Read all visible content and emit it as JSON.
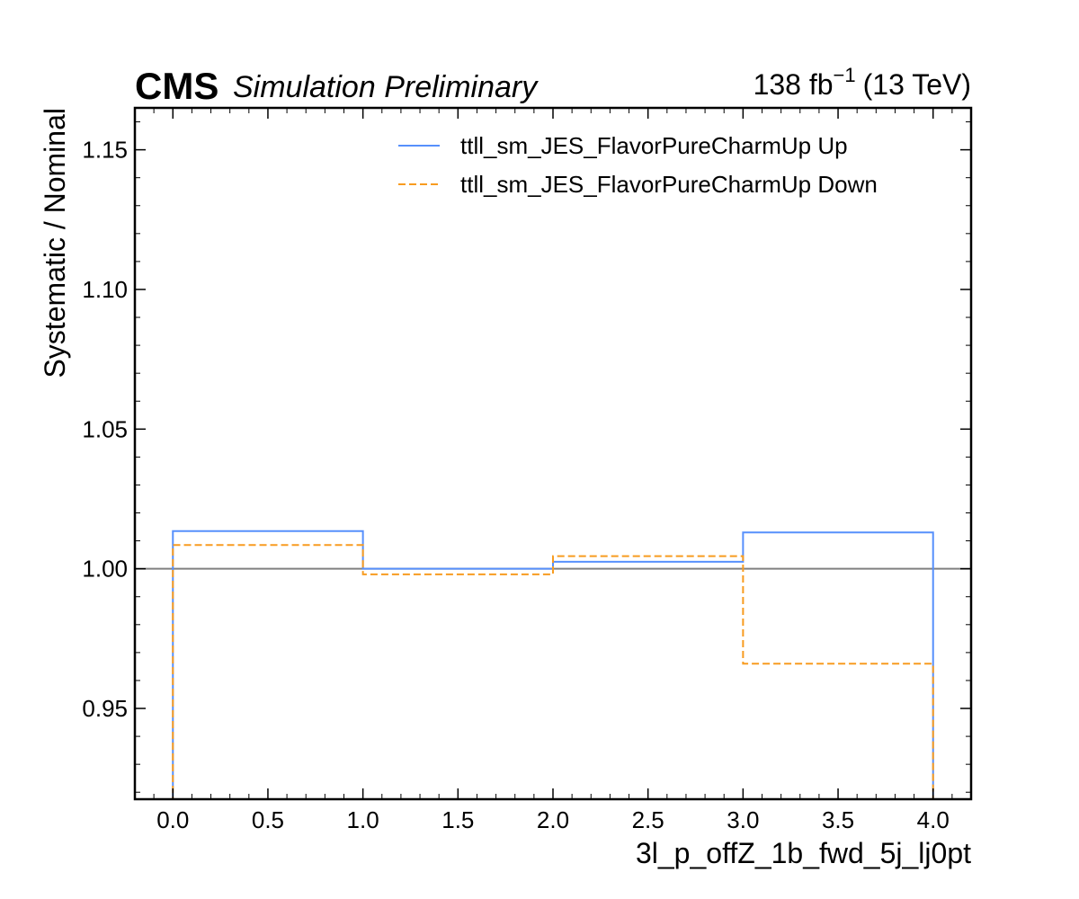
{
  "header": {
    "experiment": "CMS",
    "subtitle": "Simulation Preliminary",
    "lumi_value": "138 fb",
    "lumi_exp": "−1",
    "energy": "(13 TeV)"
  },
  "chart_data": {
    "type": "line",
    "drawstyle": "steps",
    "xlabel": "3l_p_offZ_1b_fwd_5j_lj0pt",
    "ylabel": "Systematic / Nominal",
    "xlim": [
      -0.2,
      4.2
    ],
    "ylim": [
      0.9175,
      1.165
    ],
    "xticks": [
      0.0,
      0.5,
      1.0,
      1.5,
      2.0,
      2.5,
      3.0,
      3.5,
      4.0
    ],
    "xtick_labels": [
      "0.0",
      "0.5",
      "1.0",
      "1.5",
      "2.0",
      "2.5",
      "3.0",
      "3.5",
      "4.0"
    ],
    "yticks": [
      0.95,
      1.0,
      1.05,
      1.1,
      1.15
    ],
    "ytick_labels": [
      "0.95",
      "1.00",
      "1.05",
      "1.10",
      "1.15"
    ],
    "bin_edges": [
      0,
      1,
      2,
      3,
      4
    ],
    "reference_line": 1.0,
    "legend_position": "top-right",
    "grid": false,
    "series": [
      {
        "name": "ttll_sm_JES_FlavorPureCharmUp Up",
        "values": [
          1.0135,
          1.0,
          1.0025,
          1.013
        ],
        "color": "#5790fc",
        "style": "solid"
      },
      {
        "name": "ttll_sm_JES_FlavorPureCharmUp Down",
        "values": [
          1.0085,
          0.998,
          1.0045,
          0.966
        ],
        "color": "#f89c20",
        "style": "dashed"
      }
    ]
  }
}
